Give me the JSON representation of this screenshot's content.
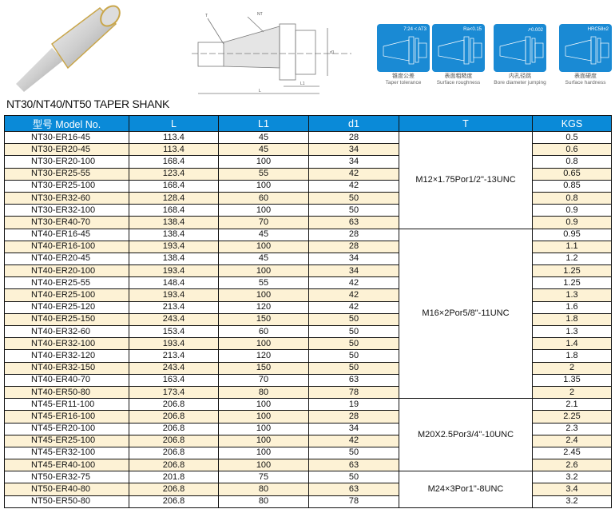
{
  "title": "NT30/NT40/NT50 TAPER SHANK",
  "drawing_labels": {
    "T": "T",
    "NT": "NT",
    "L": "L",
    "L1": "L1",
    "d1": "d1"
  },
  "features": [
    {
      "spec": "7:24 < AT3",
      "cn": "锥度公差",
      "en": "Taper tolerance",
      "icon": "taper-tolerance-icon"
    },
    {
      "spec": "Ra<0.15",
      "cn": "表面粗糙度",
      "en": "Surface roughness",
      "icon": "surface-roughness-icon"
    },
    {
      "spec": "↗0.002",
      "cn": "内孔径跳",
      "en": "Bore diameter jumping",
      "icon": "bore-runout-icon"
    },
    {
      "spec": "HRC58±2",
      "cn": "表面硬度",
      "en": "Surface hardness",
      "icon": "surface-hardness-icon"
    }
  ],
  "colors": {
    "header": "#0a8ad8",
    "row_alt": "#fdf2d5",
    "icon_bg": "#1a8ad4"
  },
  "table": {
    "headers": [
      "型号 Model No.",
      "L",
      "L1",
      "d1",
      "T",
      "KGS"
    ],
    "groups": [
      {
        "T": "M12×1.75Por1/2\"-13UNC",
        "rows": [
          [
            "NT30-ER16-45",
            "113.4",
            "45",
            "28",
            "0.5"
          ],
          [
            "NT30-ER20-45",
            "113.4",
            "45",
            "34",
            "0.6"
          ],
          [
            "NT30-ER20-100",
            "168.4",
            "100",
            "34",
            "0.8"
          ],
          [
            "NT30-ER25-55",
            "123.4",
            "55",
            "42",
            "0.65"
          ],
          [
            "NT30-ER25-100",
            "168.4",
            "100",
            "42",
            "0.85"
          ],
          [
            "NT30-ER32-60",
            "128.4",
            "60",
            "50",
            "0.8"
          ],
          [
            "NT30-ER32-100",
            "168.4",
            "100",
            "50",
            "0.9"
          ],
          [
            "NT30-ER40-70",
            "138.4",
            "70",
            "63",
            "0.9"
          ]
        ]
      },
      {
        "T": "M16×2Por5/8\"-11UNC",
        "rows": [
          [
            "NT40-ER16-45",
            "138.4",
            "45",
            "28",
            "0.95"
          ],
          [
            "NT40-ER16-100",
            "193.4",
            "100",
            "28",
            "1.1"
          ],
          [
            "NT40-ER20-45",
            "138.4",
            "45",
            "34",
            "1.2"
          ],
          [
            "NT40-ER20-100",
            "193.4",
            "100",
            "34",
            "1.25"
          ],
          [
            "NT40-ER25-55",
            "148.4",
            "55",
            "42",
            "1.25"
          ],
          [
            "NT40-ER25-100",
            "193.4",
            "100",
            "42",
            "1.3"
          ],
          [
            "NT40-ER25-120",
            "213.4",
            "120",
            "42",
            "1.6"
          ],
          [
            "NT40-ER25-150",
            "243.4",
            "150",
            "50",
            "1.8"
          ],
          [
            "NT40-ER32-60",
            "153.4",
            "60",
            "50",
            "1.3"
          ],
          [
            "NT40-ER32-100",
            "193.4",
            "100",
            "50",
            "1.4"
          ],
          [
            "NT40-ER32-120",
            "213.4",
            "120",
            "50",
            "1.8"
          ],
          [
            "NT40-ER32-150",
            "243.4",
            "150",
            "50",
            "2"
          ],
          [
            "NT40-ER40-70",
            "163.4",
            "70",
            "63",
            "1.35"
          ],
          [
            "NT40-ER50-80",
            "173.4",
            "80",
            "78",
            "2"
          ]
        ]
      },
      {
        "T": "M20X2.5Por3/4\"-10UNC",
        "rows": [
          [
            "NT45-ER11-100",
            "206.8",
            "100",
            "19",
            "2.1"
          ],
          [
            "NT45-ER16-100",
            "206.8",
            "100",
            "28",
            "2.25"
          ],
          [
            "NT45-ER20-100",
            "206.8",
            "100",
            "34",
            "2.3"
          ],
          [
            "NT45-ER25-100",
            "206.8",
            "100",
            "42",
            "2.4"
          ],
          [
            "NT45-ER32-100",
            "206.8",
            "100",
            "50",
            "2.45"
          ],
          [
            "NT45-ER40-100",
            "206.8",
            "100",
            "63",
            "2.6"
          ]
        ]
      },
      {
        "T": "M24×3Por1\"-8UNC",
        "rows": [
          [
            "NT50-ER32-75",
            "201.8",
            "75",
            "50",
            "3.2"
          ],
          [
            "NT50-ER40-80",
            "206.8",
            "80",
            "63",
            "3.4"
          ],
          [
            "NT50-ER50-80",
            "206.8",
            "80",
            "78",
            "3.2"
          ]
        ]
      }
    ]
  }
}
